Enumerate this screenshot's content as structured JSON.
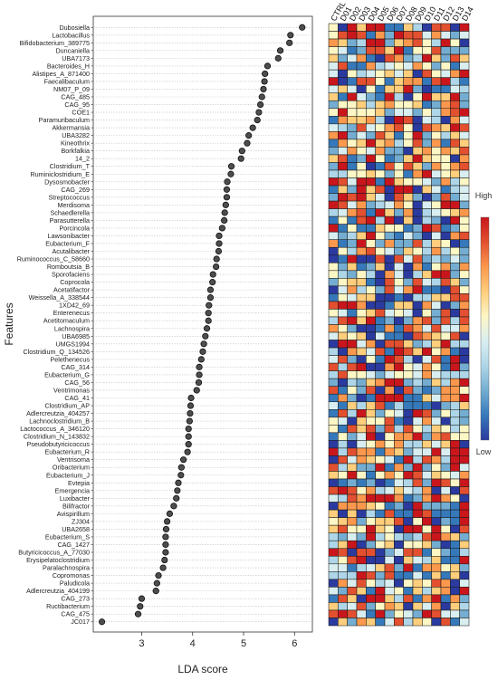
{
  "chart_data": {
    "type": "scatter",
    "xlabel": "LDA score",
    "ylabel": "Features",
    "xlim": [
      2.05,
      6.35
    ],
    "xticks": [
      3,
      4,
      5,
      6
    ],
    "grid": "dotted horizontal guides",
    "features": [
      "Dubosiella",
      "Lactobacillus",
      "Bifidobacterium_389775",
      "Duncaniella",
      "UBA7173",
      "Bacteroides_H",
      "Alistipes_A_871400",
      "Faecalibaculum",
      "NM07_P_09",
      "CAG_485",
      "CAG_95",
      "COE1",
      "Paramuribaculum",
      "Akkermansia",
      "UBA3282",
      "Kineothrix",
      "Borkfalkia",
      "14_2",
      "Clostridium_T",
      "Ruminiclostridium_E",
      "Dysosmobacter",
      "CAG_269",
      "Streptococcus",
      "Merdisoma",
      "Schaedlerella",
      "Parasutterella",
      "Porcincola",
      "Lawsonibacter",
      "Eubacterium_F",
      "Acutalibacter",
      "Ruminococcus_C_58660",
      "Romboutsia_B",
      "Sporofaciens",
      "Coprocola",
      "Acetatifactor",
      "Weissella_A_338544",
      "1XD42_69",
      "Enterenecus",
      "Acetitomaculum",
      "Lachnospira",
      "UBA6985",
      "UMGS1994",
      "Clostridium_Q_134526",
      "Pelethenecus",
      "CAG_314",
      "Eubacterium_G",
      "CAG_56",
      "Ventrimonas",
      "CAG_41",
      "Clostridium_AP",
      "Adlercreutzia_404257",
      "Lachnoclostridium_B",
      "Lactococcus_A_346120",
      "Clostridium_N_143832",
      "Pseudobutyricicoccus",
      "Eubacterium_R",
      "Ventrisoma",
      "Oribacterium",
      "Eubacterium_J",
      "Evtepia",
      "Emergencia",
      "Luxibacter",
      "Bilifractor",
      "Avispirillum",
      "ZJ304",
      "UBA2658",
      "Eubacterium_S",
      "CAG_1427",
      "Butyricicoccus_A_77030",
      "Erysipelatoclostridium",
      "Paralachnospira",
      "Copromonas",
      "Paludicola",
      "Adlercreutzia_404199",
      "CAG_273",
      "Ructibacterium",
      "CAG_475",
      "JC017"
    ],
    "lda_scores": [
      6.15,
      5.92,
      5.9,
      5.72,
      5.68,
      5.47,
      5.42,
      5.41,
      5.39,
      5.36,
      5.33,
      5.3,
      5.27,
      5.18,
      5.1,
      5.07,
      4.97,
      4.95,
      4.76,
      4.75,
      4.68,
      4.67,
      4.67,
      4.65,
      4.63,
      4.62,
      4.58,
      4.52,
      4.52,
      4.51,
      4.47,
      4.46,
      4.4,
      4.39,
      4.35,
      4.35,
      4.32,
      4.31,
      4.31,
      4.28,
      4.25,
      4.22,
      4.2,
      4.17,
      4.13,
      4.13,
      4.12,
      4.08,
      3.97,
      3.96,
      3.95,
      3.94,
      3.92,
      3.92,
      3.92,
      3.9,
      3.82,
      3.78,
      3.77,
      3.72,
      3.7,
      3.68,
      3.63,
      3.55,
      3.5,
      3.48,
      3.47,
      3.47,
      3.47,
      3.45,
      3.42,
      3.33,
      3.3,
      3.28,
      3.0,
      2.97,
      2.93,
      2.22
    ],
    "heatmap": {
      "groups": [
        "CTRL",
        "D01",
        "D02",
        "D03",
        "D04",
        "D05",
        "D06",
        "D07",
        "D08",
        "D09",
        "D10",
        "D11",
        "D12",
        "D13",
        "D14"
      ],
      "legend_high": "High",
      "legend_low": "Low",
      "colors": {
        "low": "#2b3a9f",
        "mid": "#fdf6c5",
        "high": "#c9161c"
      },
      "seed": 20240613
    }
  }
}
